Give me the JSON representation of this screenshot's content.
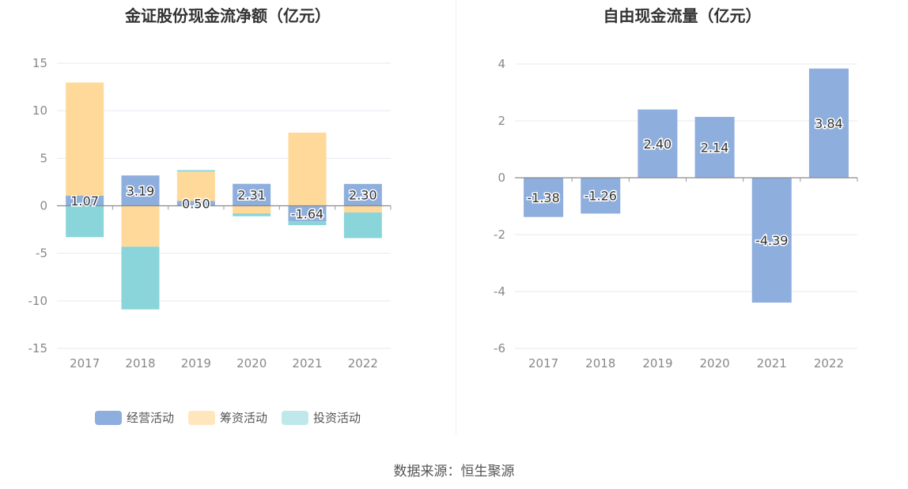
{
  "source": "数据来源：恒生聚源",
  "chart_data": [
    {
      "type": "bar",
      "stacked": true,
      "title": "金证股份现金流净额（亿元）",
      "categories": [
        "2017",
        "2018",
        "2019",
        "2020",
        "2021",
        "2022"
      ],
      "ylim": [
        -15,
        15
      ],
      "yticks": [
        15,
        10,
        5,
        0,
        -5,
        -10,
        -15
      ],
      "ytick_labels": [
        "15",
        "10",
        "5",
        "0",
        "-5",
        "-10",
        "-15"
      ],
      "series": [
        {
          "name": "经营活动",
          "color": "#8eaedd",
          "values": [
            1.07,
            3.19,
            0.5,
            2.31,
            -1.64,
            2.3
          ],
          "labels": [
            "1.07",
            "3.19",
            "0.50",
            "2.31",
            "-1.64",
            "2.30"
          ]
        },
        {
          "name": "筹资活动",
          "color": "#ffd99a",
          "values": [
            11.9,
            -4.3,
            3.1,
            -0.8,
            7.7,
            -0.7
          ]
        },
        {
          "name": "投资活动",
          "color": "#8ad5da",
          "values": [
            -3.3,
            -6.6,
            0.15,
            -0.3,
            -0.4,
            -2.7
          ]
        }
      ],
      "legend": [
        {
          "label": "经营活动",
          "color": "#8eaedd"
        },
        {
          "label": "筹资活动",
          "color": "#ffe6bd"
        },
        {
          "label": "投资活动",
          "color": "#bfe8eb"
        }
      ]
    },
    {
      "type": "bar",
      "title": "自由现金流量（亿元）",
      "categories": [
        "2017",
        "2018",
        "2019",
        "2020",
        "2021",
        "2022"
      ],
      "ylim": [
        -6,
        4
      ],
      "yticks": [
        4,
        2,
        0,
        -2,
        -4,
        -6
      ],
      "ytick_labels": [
        "4",
        "2",
        "0",
        "-2",
        "-4",
        "-6"
      ],
      "series": [
        {
          "name": "自由现金流量",
          "color": "#8eaedd",
          "values": [
            -1.38,
            -1.26,
            2.4,
            2.14,
            -4.39,
            3.84
          ],
          "labels": [
            "-1.38",
            "-1.26",
            "2.40",
            "2.14",
            "-4.39",
            "3.84"
          ]
        }
      ]
    }
  ]
}
